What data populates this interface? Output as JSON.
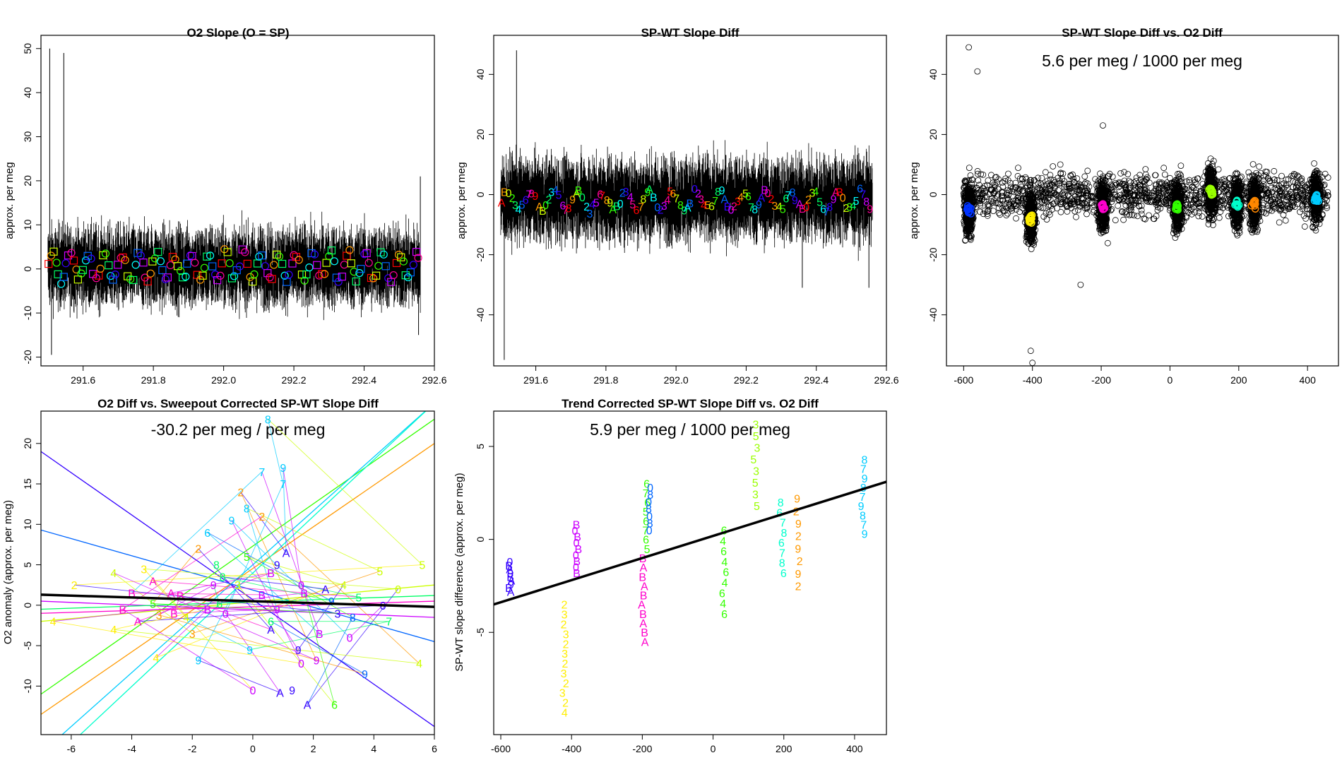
{
  "figure": {
    "palette": [
      "#FF0000",
      "#FF9900",
      "#CCFF00",
      "#33FF00",
      "#00FF66",
      "#00FFFF",
      "#0066FF",
      "#3300FF",
      "#CC00FF",
      "#FF0099"
    ],
    "marker_digits": [
      "A",
      "B",
      "0",
      "2",
      "3",
      "4",
      "5",
      "6",
      "7",
      "8",
      "9"
    ]
  },
  "chart_data": [
    {
      "id": "o2-slope",
      "type": "line",
      "title": "O2 Slope (O = SP)",
      "xlabel": "",
      "ylabel": "approx. per meg",
      "xlim": [
        291.48,
        292.6
      ],
      "ylim": [
        -22,
        53
      ],
      "xticks": [
        "291.6",
        "291.8",
        "292.0",
        "292.2",
        "292.4",
        "292.6"
      ],
      "xtick_values": [
        291.6,
        291.8,
        292.0,
        292.2,
        292.4,
        292.6
      ],
      "yticks": [
        "-20",
        "-10",
        "0",
        "10",
        "20",
        "30",
        "40",
        "50"
      ],
      "ytick_values": [
        -20,
        -10,
        0,
        10,
        20,
        30,
        40,
        50
      ],
      "annotation": "",
      "series_band": {
        "x_start": 291.5,
        "x_end": 292.56,
        "center": 0.5,
        "spread": 7,
        "spikes": [
          [
            291.505,
            50
          ],
          [
            291.51,
            -19.5
          ],
          [
            291.545,
            49
          ],
          [
            292.56,
            21
          ],
          [
            292.555,
            -15
          ]
        ]
      },
      "marker_overlay": {
        "x_start": 291.5,
        "x_end": 292.56,
        "count": 150,
        "center": 0.5,
        "spread": 5,
        "shapes": [
          "square",
          "circle"
        ]
      }
    },
    {
      "id": "spwt-slope-diff",
      "type": "line",
      "title": "SP-WT Slope Diff",
      "xlabel": "",
      "ylabel": "approx. per meg",
      "xlim": [
        291.48,
        292.6
      ],
      "ylim": [
        -57,
        53
      ],
      "xticks": [
        "291.6",
        "291.8",
        "292.0",
        "292.2",
        "292.4",
        "292.6"
      ],
      "xtick_values": [
        291.6,
        291.8,
        292.0,
        292.2,
        292.4,
        292.6
      ],
      "yticks": [
        "-40",
        "-20",
        "0",
        "20",
        "40"
      ],
      "ytick_values": [
        -40,
        -20,
        0,
        20,
        40
      ],
      "annotation": "",
      "series_band": {
        "x_start": 291.5,
        "x_end": 292.56,
        "center": -1.5,
        "spread": 11,
        "spikes": [
          [
            291.51,
            -55
          ],
          [
            291.545,
            48
          ],
          [
            292.36,
            -31
          ],
          [
            292.55,
            -31
          ]
        ]
      },
      "marker_overlay": {
        "x_start": 291.5,
        "x_end": 292.56,
        "count": 110,
        "center": -2,
        "spread": 5,
        "shapes": [
          "digit"
        ]
      }
    },
    {
      "id": "spwt-vs-o2",
      "type": "scatter",
      "title": "SP-WT Slope Diff vs. O2 Diff",
      "xlabel": "",
      "ylabel": "approx. per meg",
      "xlim": [
        -650,
        490
      ],
      "ylim": [
        -57,
        53
      ],
      "xticks": [
        "-600",
        "-400",
        "-200",
        "0",
        "200",
        "400"
      ],
      "xtick_values": [
        -600,
        -400,
        -200,
        0,
        200,
        400
      ],
      "yticks": [
        "-40",
        "-20",
        "0",
        "20",
        "40"
      ],
      "ytick_values": [
        -40,
        -20,
        0,
        20,
        40
      ],
      "annotation": "5.6 per meg / 1000 per meg",
      "clusters": [
        {
          "x": -585,
          "y_center": -5,
          "color": "#0033FF"
        },
        {
          "x": -405,
          "y_center": -8,
          "color": "#FFEE00"
        },
        {
          "x": -195,
          "y_center": -4,
          "color": "#FF00CC"
        },
        {
          "x": 22,
          "y_center": -4,
          "color": "#33FF00"
        },
        {
          "x": 120,
          "y_center": 1,
          "color": "#99FF00"
        },
        {
          "x": 195,
          "y_center": -3,
          "color": "#00FFCC"
        },
        {
          "x": 245,
          "y_center": -3,
          "color": "#FF8800"
        },
        {
          "x": 425,
          "y_center": -1,
          "color": "#00CCFF"
        }
      ],
      "outliers": [
        [
          -585,
          49
        ],
        [
          -560,
          41
        ],
        [
          -405,
          -52
        ],
        [
          -400,
          -56
        ],
        [
          -195,
          23
        ],
        [
          -260,
          -30
        ]
      ]
    },
    {
      "id": "o2-vs-sweepout",
      "type": "scatter",
      "title": "O2 Diff vs. Sweepout Corrected SP-WT Slope Diff",
      "xlabel": "",
      "ylabel": "O2 anomaly (approx. per meg)",
      "xlim": [
        -7,
        6
      ],
      "ylim": [
        -16,
        24
      ],
      "xticks": [
        "-6",
        "-4",
        "-2",
        "0",
        "2",
        "4",
        "6"
      ],
      "xtick_values": [
        -6,
        -4,
        -2,
        0,
        2,
        4,
        6
      ],
      "yticks": [
        "-10",
        "-5",
        "0",
        "5",
        "10",
        "15",
        "20"
      ],
      "ytick_values": [
        -10,
        -5,
        0,
        5,
        10,
        15,
        20
      ],
      "annotation": "-30.2 per meg / per meg",
      "trend_line": {
        "x": [
          -7,
          6
        ],
        "y": [
          1.3,
          -0.2
        ]
      },
      "fan_lines": [
        {
          "x": [
            -7,
            6
          ],
          "y": [
            19,
            -15
          ],
          "color": "#3300FF"
        },
        {
          "x": [
            -7,
            6
          ],
          "y": [
            9.3,
            -4.5
          ],
          "color": "#0066FF"
        },
        {
          "x": [
            -7,
            6
          ],
          "y": [
            -13.5,
            20
          ],
          "color": "#FF9900"
        },
        {
          "x": [
            -7,
            6
          ],
          "y": [
            -11,
            23
          ],
          "color": "#33FF00"
        },
        {
          "x": [
            -6.3,
            6
          ],
          "y": [
            -16,
            25
          ],
          "color": "#00CCFF"
        },
        {
          "x": [
            -5.7,
            6
          ],
          "y": [
            -16,
            25
          ],
          "color": "#00FFCC"
        },
        {
          "x": [
            -7,
            6
          ],
          "y": [
            -2,
            2.5
          ],
          "color": "#CCFF00"
        },
        {
          "x": [
            -7,
            6
          ],
          "y": [
            0.5,
            -1.5
          ],
          "color": "#CC00FF"
        },
        {
          "x": [
            -7,
            6
          ],
          "y": [
            -1,
            0.5
          ],
          "color": "#FF00CC"
        },
        {
          "x": [
            -7,
            6
          ],
          "y": [
            -0.5,
            1.2
          ],
          "color": "#00FF66"
        }
      ],
      "labeled_points": [
        {
          "x": 0.5,
          "y": 23,
          "label": "8",
          "color": "#00CCFF"
        },
        {
          "x": 1.0,
          "y": 17,
          "label": "9",
          "color": "#00CCFF"
        },
        {
          "x": 0.3,
          "y": 16.5,
          "label": "7",
          "color": "#00CCFF"
        },
        {
          "x": 1.0,
          "y": 15,
          "label": "7",
          "color": "#00CCFF"
        },
        {
          "x": -0.4,
          "y": 14,
          "label": "2",
          "color": "#FF9900"
        },
        {
          "x": 0.3,
          "y": 11,
          "label": "2",
          "color": "#FF9900"
        },
        {
          "x": -0.7,
          "y": 10.5,
          "label": "9",
          "color": "#00CCFF"
        },
        {
          "x": -0.2,
          "y": 12,
          "label": "8",
          "color": "#00CCFF"
        },
        {
          "x": -1.5,
          "y": 9,
          "label": "6",
          "color": "#00CCFF"
        },
        {
          "x": -1.8,
          "y": 7,
          "label": "2",
          "color": "#FF9900"
        },
        {
          "x": 1.1,
          "y": 6.5,
          "label": "A",
          "color": "#3300FF"
        },
        {
          "x": 0.8,
          "y": 5,
          "label": "9",
          "color": "#3300FF"
        },
        {
          "x": 0.6,
          "y": 4,
          "label": "B",
          "color": "#CC00FF"
        },
        {
          "x": -4.6,
          "y": 4,
          "label": "4",
          "color": "#CCFF00"
        },
        {
          "x": -3.6,
          "y": 4.5,
          "label": "3",
          "color": "#FFEE00"
        },
        {
          "x": -5.9,
          "y": 2.5,
          "label": "2",
          "color": "#FFEE00"
        },
        {
          "x": -3.3,
          "y": 3,
          "label": "A",
          "color": "#FF00CC"
        },
        {
          "x": -4.0,
          "y": 1.5,
          "label": "B",
          "color": "#FF00CC"
        },
        {
          "x": -2.7,
          "y": 1.5,
          "label": "A",
          "color": "#FF00CC"
        },
        {
          "x": -2.4,
          "y": 1.2,
          "label": "B",
          "color": "#FF00CC"
        },
        {
          "x": -4.3,
          "y": -0.5,
          "label": "B",
          "color": "#FF00CC"
        },
        {
          "x": -3.8,
          "y": -2,
          "label": "A",
          "color": "#FF00CC"
        },
        {
          "x": -2.6,
          "y": -1,
          "label": "B",
          "color": "#FF00CC"
        },
        {
          "x": -1.5,
          "y": -0.5,
          "label": "B",
          "color": "#CC00FF"
        },
        {
          "x": -0.9,
          "y": -1,
          "label": "0",
          "color": "#CC00FF"
        },
        {
          "x": -2.0,
          "y": -3.5,
          "label": "3",
          "color": "#FF9900"
        },
        {
          "x": -3.2,
          "y": -6.5,
          "label": "4",
          "color": "#FFEE00"
        },
        {
          "x": -1.8,
          "y": -6.8,
          "label": "9",
          "color": "#00CCFF"
        },
        {
          "x": -0.1,
          "y": -5.5,
          "label": "9",
          "color": "#00CCFF"
        },
        {
          "x": 1.5,
          "y": -5.5,
          "label": "9",
          "color": "#3300FF"
        },
        {
          "x": 1.6,
          "y": -7.2,
          "label": "0",
          "color": "#CC00FF"
        },
        {
          "x": 2.1,
          "y": -6.8,
          "label": "9",
          "color": "#CC00FF"
        },
        {
          "x": 0.0,
          "y": -10.5,
          "label": "0",
          "color": "#CC00FF"
        },
        {
          "x": 0.9,
          "y": -10.8,
          "label": "A",
          "color": "#3300FF"
        },
        {
          "x": 1.3,
          "y": -10.5,
          "label": "9",
          "color": "#3300FF"
        },
        {
          "x": 1.8,
          "y": -12.3,
          "label": "A",
          "color": "#3300FF"
        },
        {
          "x": 2.7,
          "y": -12.3,
          "label": "6",
          "color": "#33FF00"
        },
        {
          "x": 3.7,
          "y": -8.5,
          "label": "9",
          "color": "#0066FF"
        },
        {
          "x": 5.5,
          "y": -7.2,
          "label": "4",
          "color": "#CCFF00"
        },
        {
          "x": 5.6,
          "y": 5,
          "label": "5",
          "color": "#CCFF00"
        },
        {
          "x": 4.2,
          "y": 4.2,
          "label": "5",
          "color": "#CCFF00"
        },
        {
          "x": 4.8,
          "y": 2,
          "label": "0",
          "color": "#CCFF00"
        },
        {
          "x": 4.3,
          "y": 0,
          "label": "0",
          "color": "#3300FF"
        },
        {
          "x": 4.5,
          "y": -2,
          "label": "7",
          "color": "#00FF66"
        },
        {
          "x": 3.3,
          "y": -1.5,
          "label": "8",
          "color": "#0066FF"
        },
        {
          "x": 3.2,
          "y": -4,
          "label": "0",
          "color": "#CC00FF"
        },
        {
          "x": 3.5,
          "y": 1,
          "label": "5",
          "color": "#00FF66"
        },
        {
          "x": 2.4,
          "y": 2,
          "label": "A",
          "color": "#3300FF"
        },
        {
          "x": 1.7,
          "y": 1.5,
          "label": "B",
          "color": "#CC00FF"
        },
        {
          "x": 1.6,
          "y": 2.5,
          "label": "0",
          "color": "#CC00FF"
        },
        {
          "x": 2.6,
          "y": 0.5,
          "label": "9",
          "color": "#0066FF"
        },
        {
          "x": 2.8,
          "y": -1,
          "label": "3",
          "color": "#3300FF"
        },
        {
          "x": 0.8,
          "y": -0.5,
          "label": "9",
          "color": "#CC00FF"
        },
        {
          "x": 0.3,
          "y": 1.3,
          "label": "B",
          "color": "#CC00FF"
        },
        {
          "x": -0.5,
          "y": 2.5,
          "label": "3",
          "color": "#CCFF00"
        },
        {
          "x": 0.6,
          "y": -2,
          "label": "6",
          "color": "#00FF66"
        },
        {
          "x": -1.0,
          "y": 3.5,
          "label": "8",
          "color": "#00FF66"
        },
        {
          "x": -1.2,
          "y": 5,
          "label": "8",
          "color": "#00FF66"
        },
        {
          "x": -1.3,
          "y": 2.5,
          "label": "9",
          "color": "#CC00FF"
        },
        {
          "x": 2.2,
          "y": -3.5,
          "label": "B",
          "color": "#CC00FF"
        },
        {
          "x": 0.6,
          "y": -3,
          "label": "A",
          "color": "#3300FF"
        },
        {
          "x": -2.2,
          "y": -1.5,
          "label": "4",
          "color": "#CCFF00"
        },
        {
          "x": -4.6,
          "y": -3,
          "label": "4",
          "color": "#FFEE00"
        },
        {
          "x": -6.6,
          "y": -2,
          "label": "4",
          "color": "#FFEE00"
        },
        {
          "x": -3.1,
          "y": -1.2,
          "label": "3",
          "color": "#FF9900"
        },
        {
          "x": -0.2,
          "y": 6,
          "label": "5",
          "color": "#33FF00"
        },
        {
          "x": -3.3,
          "y": 0.2,
          "label": "5",
          "color": "#33FF00"
        },
        {
          "x": -1.1,
          "y": 0.2,
          "label": "6",
          "color": "#00FF66"
        },
        {
          "x": 3.0,
          "y": 2.5,
          "label": "4",
          "color": "#CCFF00"
        }
      ]
    },
    {
      "id": "trend-corrected",
      "type": "scatter",
      "title": "Trend Corrected SP-WT Slope Diff vs. O2 Diff",
      "xlabel": "",
      "ylabel": "SP-WT slope difference (approx. per meg)",
      "xlim": [
        -620,
        490
      ],
      "ylim": [
        -10.5,
        6.9
      ],
      "xticks": [
        "-600",
        "-400",
        "-200",
        "0",
        "200",
        "400"
      ],
      "xtick_values": [
        -600,
        -400,
        -200,
        0,
        200,
        400
      ],
      "yticks": [
        "-5",
        "0",
        "5"
      ],
      "ytick_values": [
        -5,
        0,
        5
      ],
      "annotation": "5.9 per meg / 1000 per meg",
      "trend_line": {
        "x": [
          -620,
          490
        ],
        "y": [
          -3.5,
          3.1
        ]
      },
      "columns": [
        {
          "x": -575,
          "y_min": -2.8,
          "y_max": -1.2,
          "color": "#3300FF",
          "labels": [
            "A",
            "B",
            "9",
            "A",
            "B",
            "9",
            "A",
            "B",
            "0"
          ]
        },
        {
          "x": -420,
          "y_min": -9.3,
          "y_max": -3.5,
          "color": "#FFEE00",
          "labels": [
            "4",
            "2",
            "3",
            "2",
            "3",
            "2",
            "3",
            "2",
            "3",
            "2",
            "3",
            "2"
          ]
        },
        {
          "x": -385,
          "y_min": -1.8,
          "y_max": 0.8,
          "color": "#CC00FF",
          "labels": [
            "B",
            "0",
            "B",
            "0",
            "B",
            "0",
            "B",
            "0",
            "B"
          ]
        },
        {
          "x": -195,
          "y_min": -5.5,
          "y_max": -1.0,
          "color": "#FF00CC",
          "labels": [
            "A",
            "B",
            "A",
            "B",
            "A",
            "B",
            "A",
            "B",
            "A",
            "B"
          ]
        },
        {
          "x": -190,
          "y_min": -0.5,
          "y_max": 3.0,
          "color": "#33FF00",
          "labels": [
            "5",
            "6",
            "7",
            "6",
            "5",
            "6",
            "7",
            "6"
          ]
        },
        {
          "x": -180,
          "y_min": 0.5,
          "y_max": 2.8,
          "color": "#0066FF",
          "labels": [
            "0",
            "8",
            "0",
            "8",
            "0",
            "8",
            "0"
          ]
        },
        {
          "x": 30,
          "y_min": -4.0,
          "y_max": 0.5,
          "color": "#33FF00",
          "labels": [
            "6",
            "4",
            "6",
            "4",
            "6",
            "4",
            "6",
            "4",
            "6"
          ]
        },
        {
          "x": 120,
          "y_min": 1.8,
          "y_max": 6.2,
          "color": "#99FF00",
          "labels": [
            "5",
            "3",
            "5",
            "3",
            "5",
            "3",
            "5",
            "3"
          ]
        },
        {
          "x": 195,
          "y_min": -1.8,
          "y_max": 2.0,
          "color": "#00FFCC",
          "labels": [
            "6",
            "8",
            "7",
            "6",
            "8",
            "7",
            "6",
            "8"
          ]
        },
        {
          "x": 240,
          "y_min": -2.5,
          "y_max": 2.2,
          "color": "#FF9900",
          "labels": [
            "2",
            "9",
            "2",
            "9",
            "2",
            "9",
            "2",
            "9"
          ]
        },
        {
          "x": 425,
          "y_min": 0.3,
          "y_max": 4.3,
          "color": "#00CCFF",
          "labels": [
            "9",
            "7",
            "8",
            "9",
            "7",
            "8",
            "9",
            "7",
            "8"
          ]
        }
      ]
    }
  ]
}
